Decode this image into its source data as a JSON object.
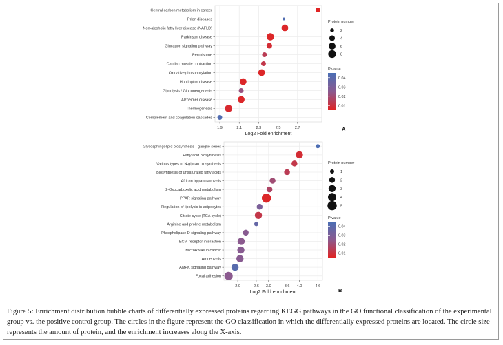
{
  "caption": "Figure 5: Enrichment distribution bubble charts of differentially expressed proteins regarding KEGG pathways in the GO functional classification of the experimental group vs. the positive control group. The circles in the figure represent the GO classification in which the differentially expressed proteins are located. The circle size represents the amount of protein, and the enrichment increases along the X-axis.",
  "colors": {
    "high_p": "#4a6fb5",
    "mid_p": "#8b5a8f",
    "low_p": "#e02424"
  },
  "chart_data": [
    {
      "type": "scatter",
      "panel_label": "A",
      "xlabel": "Log2 Fold enrichment",
      "xlim": [
        1.85,
        2.95
      ],
      "xticks": [
        1.9,
        2.1,
        2.3,
        2.5,
        2.7
      ],
      "xtick_labels": [
        "1.9",
        "2.1",
        "2.3",
        "2.5",
        "2.7"
      ],
      "size_legend": {
        "title": "Protein number",
        "values": [
          2,
          4,
          6,
          8
        ]
      },
      "color_legend": {
        "title": "P value",
        "ticks": [
          0.04,
          0.03,
          0.02,
          0.01
        ],
        "tick_labels": [
          "0.04",
          "0.03",
          "0.02",
          "0.01"
        ],
        "range": [
          0.005,
          0.045
        ]
      },
      "points": [
        {
          "term": "Central carbon metabolism in cancer",
          "x": 2.91,
          "count": 3,
          "p": 0.005
        },
        {
          "term": "Prion diseases",
          "x": 2.56,
          "count": 1,
          "p": 0.043
        },
        {
          "term": "Non-alcoholic fatty liver disease (NAFLD)",
          "x": 2.57,
          "count": 6,
          "p": 0.006
        },
        {
          "term": "Parkinson disease",
          "x": 2.42,
          "count": 7,
          "p": 0.006
        },
        {
          "term": "Glucagon signaling pathway",
          "x": 2.41,
          "count": 4,
          "p": 0.008
        },
        {
          "term": "Peroxisome",
          "x": 2.36,
          "count": 3,
          "p": 0.014
        },
        {
          "term": "Cardiac muscle contraction",
          "x": 2.35,
          "count": 3,
          "p": 0.012
        },
        {
          "term": "Oxidative phosphorylation",
          "x": 2.33,
          "count": 6,
          "p": 0.006
        },
        {
          "term": "Huntington disease",
          "x": 2.14,
          "count": 6,
          "p": 0.006
        },
        {
          "term": "Glycolysis / Gluconeogenesis",
          "x": 2.12,
          "count": 3,
          "p": 0.022
        },
        {
          "term": "Alzheimer disease",
          "x": 2.12,
          "count": 6,
          "p": 0.006
        },
        {
          "term": "Thermogenesis",
          "x": 1.99,
          "count": 7,
          "p": 0.007
        },
        {
          "term": "Complement and coagulation cascades",
          "x": 1.9,
          "count": 3,
          "p": 0.043
        }
      ]
    },
    {
      "type": "scatter",
      "panel_label": "B",
      "xlabel": "Log2 Fold enrichment",
      "xlim": [
        1.55,
        4.75
      ],
      "xticks": [
        2.0,
        2.6,
        3.0,
        3.6,
        4.0,
        4.6
      ],
      "xtick_labels": [
        "2.0",
        "2.6",
        "3.0",
        "3.6",
        "4.0",
        "4.6"
      ],
      "size_legend": {
        "title": "Protein number",
        "values": [
          1,
          2,
          3,
          4,
          5
        ]
      },
      "color_legend": {
        "title": "P value",
        "ticks": [
          0.04,
          0.03,
          0.02,
          0.01
        ],
        "tick_labels": [
          "0.04",
          "0.03",
          "0.02",
          "0.01"
        ],
        "range": [
          0.005,
          0.045
        ]
      },
      "points": [
        {
          "term": "Glycosphingolipid biosynthesis - ganglio series",
          "x": 4.6,
          "count": 1,
          "p": 0.044
        },
        {
          "term": "Fatty acid biosynthesis",
          "x": 4.0,
          "count": 3,
          "p": 0.008
        },
        {
          "term": "Various types of N-glycan biosynthesis",
          "x": 3.84,
          "count": 2,
          "p": 0.012
        },
        {
          "term": "Biosynthesis of unsaturated fatty acids",
          "x": 3.6,
          "count": 2,
          "p": 0.014
        },
        {
          "term": "African trypanosomiasis",
          "x": 3.13,
          "count": 2,
          "p": 0.02
        },
        {
          "term": "2-Oxocarboxylic acid metabolism",
          "x": 3.03,
          "count": 2,
          "p": 0.017
        },
        {
          "term": "PPAR signaling pathway",
          "x": 2.93,
          "count": 5,
          "p": 0.006
        },
        {
          "term": "Regulation of lipolysis in adipocytes",
          "x": 2.71,
          "count": 2,
          "p": 0.03
        },
        {
          "term": "Citrate cycle (TCA cycle)",
          "x": 2.67,
          "count": 3,
          "p": 0.012
        },
        {
          "term": "Arginine and proline metabolism",
          "x": 2.6,
          "count": 1,
          "p": 0.037
        },
        {
          "term": "Phospholipase D signaling pathway",
          "x": 2.26,
          "count": 2,
          "p": 0.026
        },
        {
          "term": "ECM-receptor interaction",
          "x": 2.11,
          "count": 3,
          "p": 0.025
        },
        {
          "term": "MicroRNAs in cancer",
          "x": 2.1,
          "count": 3,
          "p": 0.026
        },
        {
          "term": "Amoebiasis",
          "x": 2.07,
          "count": 3,
          "p": 0.026
        },
        {
          "term": "AMPK signaling pathway",
          "x": 1.91,
          "count": 3,
          "p": 0.041
        },
        {
          "term": "Focal adhesion",
          "x": 1.7,
          "count": 4,
          "p": 0.025
        }
      ]
    }
  ]
}
